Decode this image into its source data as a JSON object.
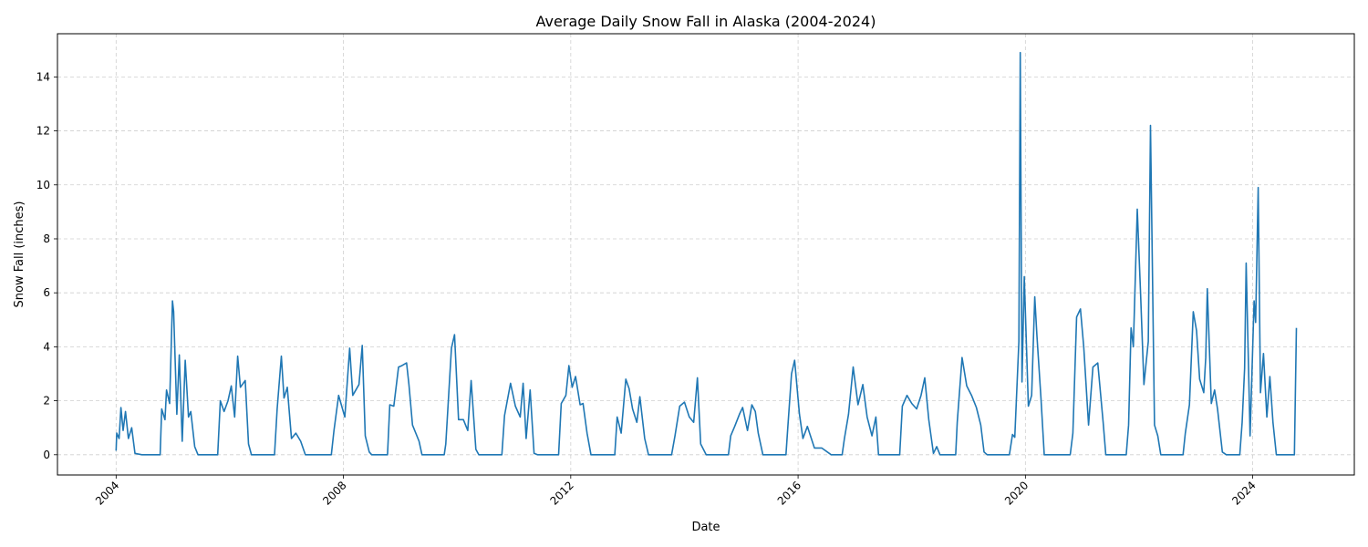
{
  "chart_data": {
    "type": "line",
    "title": "Average Daily Snow Fall in Alaska (2004-2024)",
    "xlabel": "Date",
    "ylabel": "Snow Fall (inches)",
    "x_type": "date",
    "xlim": [
      "2002-12-20",
      "2025-10-15"
    ],
    "ylim": [
      -0.75,
      15.6
    ],
    "x_ticks": [
      "2004",
      "2008",
      "2012",
      "2016",
      "2020",
      "2024"
    ],
    "y_ticks": [
      0,
      2,
      4,
      6,
      8,
      10,
      12,
      14
    ],
    "grid": true,
    "line_color": "#1f77b4",
    "series": [
      {
        "name": "",
        "points": [
          [
            "2004-01-01",
            0.15
          ],
          [
            "2004-01-05",
            0.8
          ],
          [
            "2004-01-20",
            0.6
          ],
          [
            "2004-02-01",
            1.75
          ],
          [
            "2004-02-15",
            0.9
          ],
          [
            "2004-03-01",
            1.6
          ],
          [
            "2004-03-20",
            0.6
          ],
          [
            "2004-04-10",
            1.0
          ],
          [
            "2004-05-01",
            0.05
          ],
          [
            "2004-06-15",
            0
          ],
          [
            "2004-10-10",
            0
          ],
          [
            "2004-10-20",
            1.7
          ],
          [
            "2004-11-10",
            1.3
          ],
          [
            "2004-11-20",
            2.4
          ],
          [
            "2004-12-10",
            1.9
          ],
          [
            "2004-12-28",
            5.7
          ],
          [
            "2005-01-05",
            5.3
          ],
          [
            "2005-01-25",
            1.5
          ],
          [
            "2005-02-10",
            3.7
          ],
          [
            "2005-03-01",
            0.5
          ],
          [
            "2005-03-20",
            3.5
          ],
          [
            "2005-04-10",
            1.4
          ],
          [
            "2005-04-25",
            1.6
          ],
          [
            "2005-05-20",
            0.3
          ],
          [
            "2005-06-10",
            0
          ],
          [
            "2005-10-15",
            0
          ],
          [
            "2005-11-01",
            2.0
          ],
          [
            "2005-11-25",
            1.6
          ],
          [
            "2005-12-20",
            2.0
          ],
          [
            "2006-01-10",
            2.55
          ],
          [
            "2006-02-01",
            1.4
          ],
          [
            "2006-02-20",
            3.65
          ],
          [
            "2006-03-10",
            2.5
          ],
          [
            "2006-04-10",
            2.75
          ],
          [
            "2006-05-01",
            0.4
          ],
          [
            "2006-05-20",
            0
          ],
          [
            "2006-10-15",
            0
          ],
          [
            "2006-11-01",
            1.7
          ],
          [
            "2006-11-28",
            3.65
          ],
          [
            "2006-12-15",
            2.1
          ],
          [
            "2007-01-05",
            2.5
          ],
          [
            "2007-02-01",
            0.6
          ],
          [
            "2007-03-01",
            0.8
          ],
          [
            "2007-04-01",
            0.5
          ],
          [
            "2007-05-01",
            0
          ],
          [
            "2007-10-15",
            0
          ],
          [
            "2007-11-01",
            0.9
          ],
          [
            "2007-12-01",
            2.2
          ],
          [
            "2008-01-10",
            1.4
          ],
          [
            "2008-02-10",
            3.95
          ],
          [
            "2008-03-01",
            2.2
          ],
          [
            "2008-04-10",
            2.6
          ],
          [
            "2008-05-01",
            4.05
          ],
          [
            "2008-05-20",
            0.7
          ],
          [
            "2008-06-15",
            0.1
          ],
          [
            "2008-07-01",
            0
          ],
          [
            "2008-10-10",
            0
          ],
          [
            "2008-10-25",
            1.85
          ],
          [
            "2008-11-20",
            1.8
          ],
          [
            "2008-12-20",
            3.25
          ],
          [
            "2009-01-10",
            3.3
          ],
          [
            "2009-02-10",
            3.4
          ],
          [
            "2009-02-25",
            2.6
          ],
          [
            "2009-03-20",
            1.1
          ],
          [
            "2009-05-01",
            0.5
          ],
          [
            "2009-05-20",
            0
          ],
          [
            "2009-10-10",
            0
          ],
          [
            "2009-10-20",
            0.4
          ],
          [
            "2009-11-25",
            3.95
          ],
          [
            "2009-12-15",
            4.45
          ],
          [
            "2010-01-10",
            1.3
          ],
          [
            "2010-02-10",
            1.3
          ],
          [
            "2010-03-10",
            0.9
          ],
          [
            "2010-04-01",
            2.75
          ],
          [
            "2010-05-01",
            0.2
          ],
          [
            "2010-05-20",
            0
          ],
          [
            "2010-10-15",
            0
          ],
          [
            "2010-11-01",
            1.45
          ],
          [
            "2010-12-10",
            2.65
          ],
          [
            "2011-01-10",
            1.8
          ],
          [
            "2011-02-10",
            1.4
          ],
          [
            "2011-03-01",
            2.65
          ],
          [
            "2011-03-20",
            0.6
          ],
          [
            "2011-04-15",
            2.4
          ],
          [
            "2011-05-10",
            0.05
          ],
          [
            "2011-06-01",
            0
          ],
          [
            "2011-10-15",
            0
          ],
          [
            "2011-11-01",
            1.9
          ],
          [
            "2011-12-01",
            2.2
          ],
          [
            "2011-12-20",
            3.3
          ],
          [
            "2012-01-10",
            2.5
          ],
          [
            "2012-02-01",
            2.9
          ],
          [
            "2012-03-01",
            1.85
          ],
          [
            "2012-03-20",
            1.9
          ],
          [
            "2012-04-15",
            0.8
          ],
          [
            "2012-05-10",
            0
          ],
          [
            "2012-10-10",
            0
          ],
          [
            "2012-10-25",
            1.4
          ],
          [
            "2012-11-20",
            0.8
          ],
          [
            "2012-12-20",
            2.8
          ],
          [
            "2013-01-10",
            2.45
          ],
          [
            "2013-02-01",
            1.7
          ],
          [
            "2013-03-01",
            1.2
          ],
          [
            "2013-03-20",
            2.15
          ],
          [
            "2013-04-20",
            0.6
          ],
          [
            "2013-05-15",
            0
          ],
          [
            "2013-10-10",
            0
          ],
          [
            "2013-11-01",
            0.7
          ],
          [
            "2013-12-01",
            1.8
          ],
          [
            "2014-01-01",
            1.95
          ],
          [
            "2014-02-01",
            1.4
          ],
          [
            "2014-03-01",
            1.2
          ],
          [
            "2014-03-25",
            2.85
          ],
          [
            "2014-04-15",
            0.4
          ],
          [
            "2014-05-20",
            0
          ],
          [
            "2014-10-10",
            0
          ],
          [
            "2014-10-25",
            0.7
          ],
          [
            "2014-11-20",
            1.05
          ],
          [
            "2014-12-20",
            1.5
          ],
          [
            "2015-01-10",
            1.75
          ],
          [
            "2015-02-10",
            0.9
          ],
          [
            "2015-03-10",
            1.85
          ],
          [
            "2015-04-01",
            1.6
          ],
          [
            "2015-04-20",
            0.8
          ],
          [
            "2015-05-20",
            0
          ],
          [
            "2015-10-15",
            0
          ],
          [
            "2015-10-25",
            0.85
          ],
          [
            "2015-11-20",
            3.0
          ],
          [
            "2015-12-10",
            3.5
          ],
          [
            "2016-01-10",
            1.5
          ],
          [
            "2016-02-01",
            0.6
          ],
          [
            "2016-03-01",
            1.05
          ],
          [
            "2016-04-15",
            0.25
          ],
          [
            "2016-06-01",
            0.25
          ],
          [
            "2016-08-01",
            0
          ],
          [
            "2016-10-10",
            0
          ],
          [
            "2016-10-25",
            0.6
          ],
          [
            "2016-11-20",
            1.5
          ],
          [
            "2016-12-20",
            3.25
          ],
          [
            "2017-01-20",
            1.85
          ],
          [
            "2017-02-20",
            2.6
          ],
          [
            "2017-03-20",
            1.4
          ],
          [
            "2017-04-20",
            0.7
          ],
          [
            "2017-05-15",
            1.4
          ],
          [
            "2017-06-01",
            0
          ],
          [
            "2017-10-15",
            0
          ],
          [
            "2017-11-01",
            1.8
          ],
          [
            "2017-12-01",
            2.2
          ],
          [
            "2018-01-01",
            1.9
          ],
          [
            "2018-02-01",
            1.7
          ],
          [
            "2018-03-01",
            2.2
          ],
          [
            "2018-03-25",
            2.85
          ],
          [
            "2018-04-20",
            1.3
          ],
          [
            "2018-05-20",
            0.05
          ],
          [
            "2018-06-10",
            0.3
          ],
          [
            "2018-07-01",
            0
          ],
          [
            "2018-10-10",
            0
          ],
          [
            "2018-10-20",
            1.2
          ],
          [
            "2018-11-20",
            3.6
          ],
          [
            "2018-12-20",
            2.55
          ],
          [
            "2019-01-20",
            2.2
          ],
          [
            "2019-02-20",
            1.75
          ],
          [
            "2019-03-20",
            1.1
          ],
          [
            "2019-04-10",
            0.1
          ],
          [
            "2019-05-01",
            0
          ],
          [
            "2019-09-20",
            0
          ],
          [
            "2019-10-10",
            0.75
          ],
          [
            "2019-10-25",
            0.65
          ],
          [
            "2019-11-20",
            4.2
          ],
          [
            "2019-11-29",
            14.9
          ],
          [
            "2019-12-10",
            2.7
          ],
          [
            "2019-12-25",
            6.6
          ],
          [
            "2020-01-20",
            1.8
          ],
          [
            "2020-02-10",
            2.2
          ],
          [
            "2020-03-01",
            5.85
          ],
          [
            "2020-03-15",
            4.4
          ],
          [
            "2020-04-10",
            2.1
          ],
          [
            "2020-05-01",
            0
          ],
          [
            "2020-10-15",
            0
          ],
          [
            "2020-11-01",
            0.8
          ],
          [
            "2020-11-25",
            5.1
          ],
          [
            "2020-12-20",
            5.4
          ],
          [
            "2021-01-10",
            4.0
          ],
          [
            "2021-02-10",
            1.1
          ],
          [
            "2021-03-10",
            3.25
          ],
          [
            "2021-04-10",
            3.4
          ],
          [
            "2021-05-15",
            1.2
          ],
          [
            "2021-06-01",
            0
          ],
          [
            "2021-10-10",
            0
          ],
          [
            "2021-10-25",
            1.1
          ],
          [
            "2021-11-10",
            4.7
          ],
          [
            "2021-11-25",
            4.0
          ],
          [
            "2021-12-20",
            9.1
          ],
          [
            "2022-01-10",
            6.0
          ],
          [
            "2022-02-01",
            2.6
          ],
          [
            "2022-03-01",
            4.2
          ],
          [
            "2022-03-15",
            12.2
          ],
          [
            "2022-04-10",
            1.1
          ],
          [
            "2022-05-01",
            0.7
          ],
          [
            "2022-05-20",
            0
          ],
          [
            "2022-10-10",
            0
          ],
          [
            "2022-10-25",
            0.8
          ],
          [
            "2022-11-20",
            1.85
          ],
          [
            "2022-12-15",
            5.3
          ],
          [
            "2023-01-05",
            4.6
          ],
          [
            "2023-01-25",
            2.8
          ],
          [
            "2023-02-20",
            2.3
          ],
          [
            "2023-03-05",
            3.6
          ],
          [
            "2023-03-15",
            6.15
          ],
          [
            "2023-04-10",
            1.9
          ],
          [
            "2023-05-01",
            2.4
          ],
          [
            "2023-05-20",
            1.7
          ],
          [
            "2023-06-20",
            0.1
          ],
          [
            "2023-07-15",
            0
          ],
          [
            "2023-10-10",
            0
          ],
          [
            "2023-10-25",
            1.2
          ],
          [
            "2023-11-10",
            3.2
          ],
          [
            "2023-11-20",
            7.1
          ],
          [
            "2023-12-15",
            0.7
          ],
          [
            "2024-01-10",
            5.7
          ],
          [
            "2024-01-20",
            4.9
          ],
          [
            "2024-02-05",
            9.9
          ],
          [
            "2024-02-20",
            2.3
          ],
          [
            "2024-03-10",
            3.75
          ],
          [
            "2024-04-01",
            1.4
          ],
          [
            "2024-04-20",
            2.9
          ],
          [
            "2024-05-10",
            1.2
          ],
          [
            "2024-06-01",
            0
          ],
          [
            "2024-09-25",
            0
          ],
          [
            "2024-10-08",
            4.7
          ]
        ]
      }
    ]
  }
}
